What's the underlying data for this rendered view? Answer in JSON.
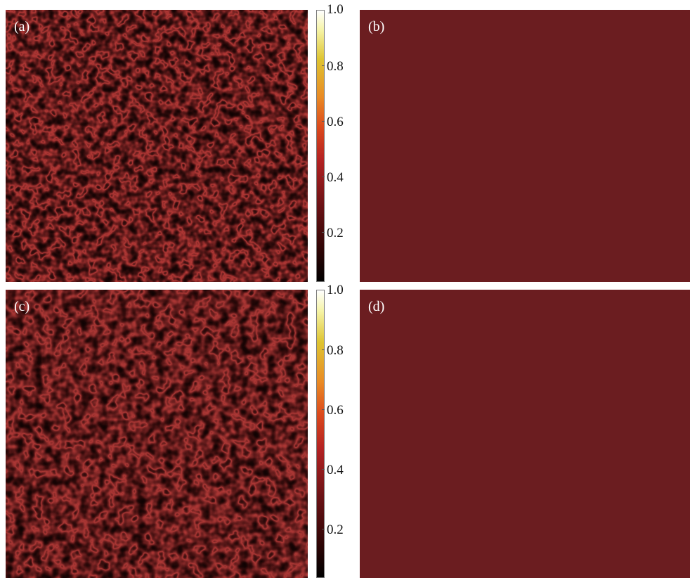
{
  "panels": {
    "a": {
      "label": "(a)",
      "content": "speckle"
    },
    "b": {
      "label": "(b)",
      "content": "uniform"
    },
    "c": {
      "label": "(c)",
      "content": "speckle"
    },
    "d": {
      "label": "(d)",
      "content": "uniform"
    }
  },
  "colorbars": {
    "top": {
      "ticks": [
        "1.0",
        "0.8",
        "0.6",
        "0.4",
        "0.2"
      ]
    },
    "bottom": {
      "ticks": [
        "1.0",
        "0.8",
        "0.6",
        "0.4",
        "0.2"
      ]
    }
  },
  "colors": {
    "speckle_base": "#1e0808",
    "speckle_bright": "#b0403c",
    "uniform": "#6b1d20",
    "background": "#ffffff"
  }
}
